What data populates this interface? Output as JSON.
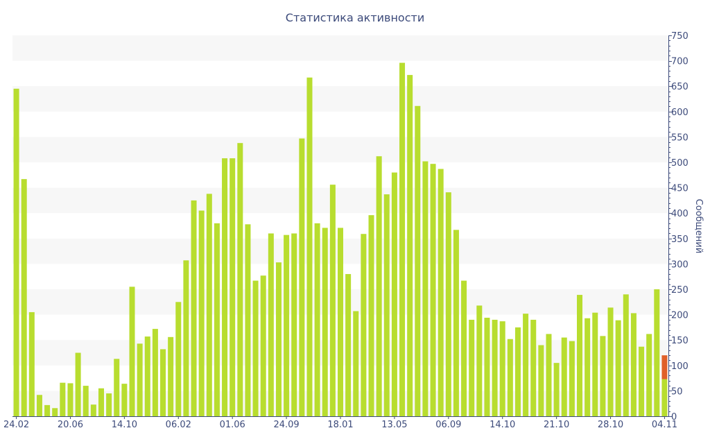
{
  "chart_data": {
    "type": "bar",
    "title": "Статистика активности",
    "xlabel": "",
    "ylabel": "Сообщений",
    "y_axis_position": "right",
    "ylim": [
      0,
      750
    ],
    "yticks": [
      0,
      50,
      100,
      150,
      200,
      250,
      300,
      350,
      400,
      450,
      500,
      550,
      600,
      650,
      700,
      750
    ],
    "grid": "horizontal alternating bands",
    "x_tick_labels": [
      "24.02",
      "20.06",
      "14.10",
      "06.02",
      "01.06",
      "24.09",
      "18.01",
      "13.05",
      "06.09",
      "14.10",
      "21.10",
      "28.10",
      "04.11"
    ],
    "x_tick_label_positions": [
      0,
      7,
      14,
      21,
      28,
      35,
      42,
      49,
      56,
      63,
      70,
      77,
      84
    ],
    "colors": {
      "bar": "#b8dd2f",
      "highlight": "#e0602a",
      "axis": "#3c4a7a",
      "band": "#f7f7f7"
    },
    "series": [
      {
        "values": [
          645,
          467,
          205,
          42,
          22,
          16,
          66,
          65,
          125,
          60,
          23,
          55,
          45,
          113,
          64,
          255,
          143,
          157,
          172,
          132,
          156,
          225,
          307,
          425,
          405,
          438,
          380,
          508,
          508,
          538,
          378,
          267,
          277,
          360,
          303,
          357,
          360,
          547,
          667,
          380,
          371,
          456,
          371,
          280,
          207,
          359,
          396,
          512,
          437,
          480,
          696,
          672,
          611,
          502,
          497,
          487,
          441,
          367,
          267,
          190,
          218,
          194,
          190,
          187,
          152,
          175,
          202,
          190,
          140,
          162,
          105,
          155,
          148,
          239,
          193,
          204,
          158,
          214,
          189,
          240,
          203,
          137,
          162,
          250,
          73
        ]
      },
      {
        "values": [
          0,
          0,
          0,
          0,
          0,
          0,
          0,
          0,
          0,
          0,
          0,
          0,
          0,
          0,
          0,
          0,
          0,
          0,
          0,
          0,
          0,
          0,
          0,
          0,
          0,
          0,
          0,
          0,
          0,
          0,
          0,
          0,
          0,
          0,
          0,
          0,
          0,
          0,
          0,
          0,
          0,
          0,
          0,
          0,
          0,
          0,
          0,
          0,
          0,
          0,
          0,
          0,
          0,
          0,
          0,
          0,
          0,
          0,
          0,
          0,
          0,
          0,
          0,
          0,
          0,
          0,
          0,
          0,
          0,
          0,
          0,
          0,
          0,
          0,
          0,
          0,
          0,
          0,
          0,
          0,
          0,
          0,
          0,
          0,
          47
        ]
      }
    ]
  }
}
